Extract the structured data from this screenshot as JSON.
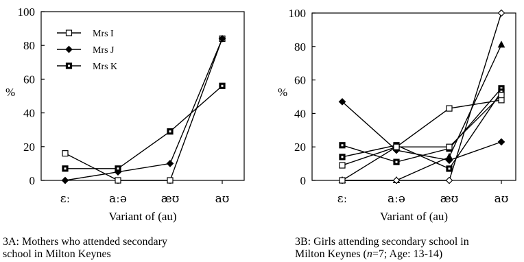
{
  "chart_data": [
    {
      "type": "line",
      "categories": [
        "ɛː",
        "aːə",
        "æʊ",
        "aʊ"
      ],
      "xlabel": "Variant of (au)",
      "ylabel": "%",
      "ylim": [
        0,
        100
      ],
      "yticks": [
        0,
        20,
        40,
        60,
        80,
        100
      ],
      "grid": false,
      "legend": "top-left",
      "caption_lines": [
        "3A: Mothers who attended secondary",
        "school in Milton Keynes"
      ],
      "series": [
        {
          "name": "Mrs I",
          "marker": "open-square",
          "values": [
            16,
            0,
            0,
            84
          ]
        },
        {
          "name": "Mrs J",
          "marker": "filled-diamond",
          "values": [
            0,
            5,
            10,
            84
          ]
        },
        {
          "name": "Mrs K",
          "marker": "filled-square",
          "values": [
            7,
            7,
            29,
            56
          ]
        }
      ]
    },
    {
      "type": "line",
      "categories": [
        "ɛː",
        "aːə",
        "æʊ",
        "aʊ"
      ],
      "xlabel": "Variant of (au)",
      "ylabel": "%",
      "ylim": [
        0,
        100
      ],
      "yticks": [
        0,
        20,
        40,
        60,
        80,
        100
      ],
      "grid": false,
      "legend": "none",
      "caption_lines": [
        "3B: Girls attending secondary school in",
        "Milton Keynes ("
      ],
      "caption_n": "n",
      "caption_rest": "=7; Age: 13-14)",
      "series": [
        {
          "marker": "filled-diamond",
          "values": [
            47,
            18,
            12,
            23
          ]
        },
        {
          "marker": "open-square",
          "values": [
            9,
            20,
            43,
            48
          ]
        },
        {
          "marker": "filled-square",
          "values": [
            21,
            11,
            19,
            55
          ]
        },
        {
          "marker": "filled-square",
          "values": [
            14,
            21,
            7,
            53
          ]
        },
        {
          "marker": "filled-triangle",
          "values": [
            0,
            0,
            14,
            81
          ]
        },
        {
          "marker": "open-diamond",
          "values": [
            0,
            0,
            0,
            100
          ]
        },
        {
          "marker": "open-square",
          "values": [
            0,
            20,
            20,
            51
          ]
        }
      ]
    }
  ]
}
